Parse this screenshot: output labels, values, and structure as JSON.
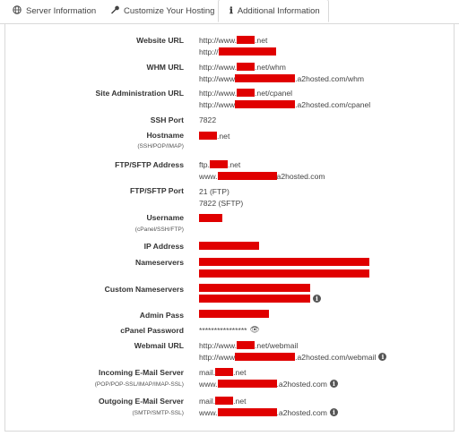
{
  "tabs": [
    {
      "label": "Server Information",
      "icon": "globe-icon",
      "active": false
    },
    {
      "label": "Customize Your Hosting",
      "icon": "wrench-icon",
      "active": false
    },
    {
      "label": "Additional Information",
      "icon": "info-icon",
      "active": true
    }
  ],
  "rows": {
    "website_url": {
      "label": "Website URL",
      "v1_pre": "http://www.",
      "v1_post": ".net",
      "v2_pre": "http://",
      "v2_post": ""
    },
    "whm_url": {
      "label": "WHM URL",
      "v1_pre": "http://www.",
      "v1_post": ".net/whm",
      "v2_pre": "http://www",
      "v2_post": ".a2hosted.com/whm"
    },
    "site_admin_url": {
      "label": "Site Administration URL",
      "v1_pre": "http://www.",
      "v1_post": ".net/cpanel",
      "v2_pre": "http://www",
      "v2_post": ".a2hosted.com/cpanel"
    },
    "ssh_port": {
      "label": "SSH Port",
      "value": "7822"
    },
    "hostname": {
      "label": "Hostname",
      "sub": "(SSH/POP/IMAP)",
      "v1_post": ".net"
    },
    "ftp_address": {
      "label": "FTP/SFTP Address",
      "v1_pre": "ftp.",
      "v1_post": ".net",
      "v2_pre": "www.",
      "v2_post": "a2hosted.com"
    },
    "ftp_port": {
      "label": "FTP/SFTP Port",
      "v1": "21 (FTP)",
      "v2": "7822 (SFTP)"
    },
    "username": {
      "label": "Username",
      "sub": "(cPanel/SSH/FTP)"
    },
    "ip_address": {
      "label": "IP Address"
    },
    "nameservers": {
      "label": "Nameservers"
    },
    "custom_nameservers": {
      "label": "Custom Nameservers"
    },
    "admin_pass": {
      "label": "Admin Pass"
    },
    "cpanel_password": {
      "label": "cPanel Password",
      "value": "****************"
    },
    "webmail_url": {
      "label": "Webmail URL",
      "v1_pre": "http://www.",
      "v1_post": ".net/webmail",
      "v2_pre": "http://www",
      "v2_post": ".a2hosted.com/webmail"
    },
    "incoming_mail": {
      "label": "Incoming E-Mail Server",
      "sub": "(POP/POP-SSL/IMAP/IMAP-SSL)",
      "v1_pre": "mail.",
      "v1_post": ".net",
      "v2_pre": "www.",
      "v2_post": ".a2hosted.com"
    },
    "outgoing_mail": {
      "label": "Outgoing E-Mail Server",
      "sub": "(SMTP/SMTP-SSL)",
      "v1_pre": "mail.",
      "v1_post": ".net",
      "v2_pre": "www.",
      "v2_post": ".a2hosted.com"
    }
  },
  "icons": {
    "info_glyph": "i",
    "eye_glyph": "👁"
  },
  "colors": {
    "redaction": "#e00000",
    "border": "#d9d9d9"
  }
}
